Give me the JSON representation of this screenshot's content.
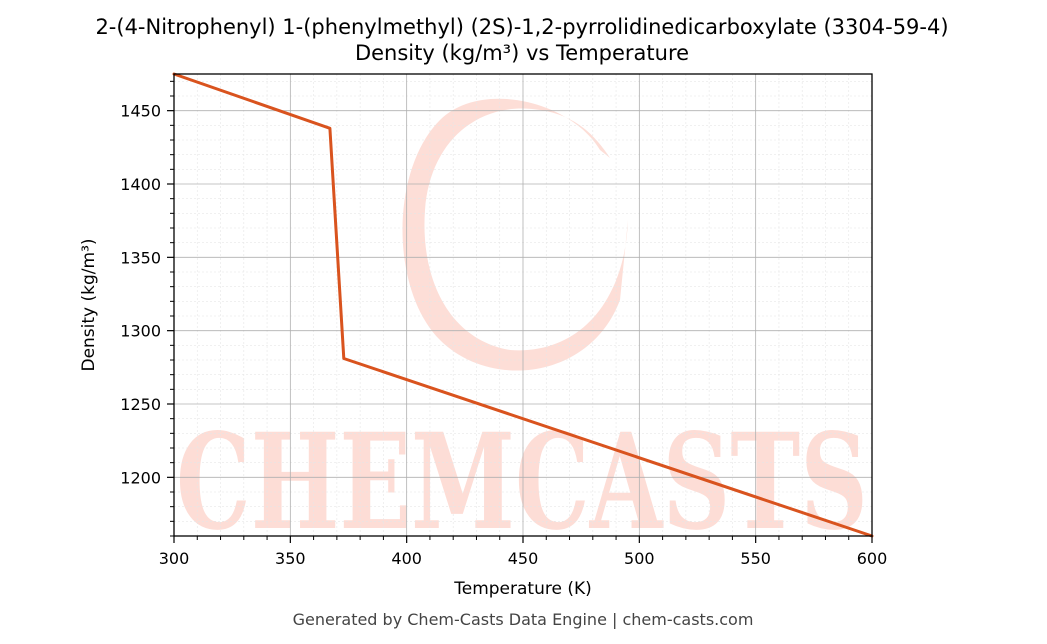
{
  "chart_data": {
    "type": "line",
    "title": "2-(4-Nitrophenyl) 1-(phenylmethyl) (2S)-1,2-pyrrolidinedicarboxylate (3304-59-4)",
    "subtitle": "Density (kg/m³) vs Temperature",
    "xlabel": "Temperature (K)",
    "ylabel": "Density (kg/m³)",
    "xlim": [
      300,
      600
    ],
    "ylim": [
      1160,
      1475
    ],
    "xticks": [
      300,
      350,
      400,
      450,
      500,
      550,
      600
    ],
    "yticks": [
      1200,
      1250,
      1300,
      1350,
      1400,
      1450
    ],
    "grid": true,
    "series": [
      {
        "color": "#d9531e",
        "points": [
          [
            300,
            1475
          ],
          [
            367,
            1438
          ],
          [
            373,
            1281
          ],
          [
            600,
            1160
          ]
        ]
      }
    ]
  },
  "watermark": {
    "text": "CHEMCASTS",
    "color": "#fdd8d0"
  },
  "footer": "Generated by Chem-Casts Data Engine | chem-casts.com"
}
